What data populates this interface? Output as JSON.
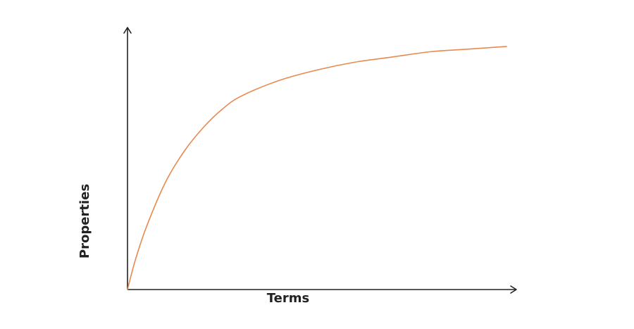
{
  "chart_data": {
    "type": "line",
    "title": "",
    "xlabel": "Terms",
    "ylabel": "Properties",
    "xlim": [
      0,
      1
    ],
    "ylim": [
      0,
      1
    ],
    "grid": false,
    "ticks": false,
    "series": [
      {
        "color": "#e8894f",
        "x": [
          0,
          0.02,
          0.05,
          0.1,
          0.15,
          0.2,
          0.25,
          0.3,
          0.4,
          0.5,
          0.6,
          0.7,
          0.8,
          0.9,
          1.0
        ],
        "y": [
          0,
          0.11,
          0.24,
          0.41,
          0.53,
          0.62,
          0.69,
          0.74,
          0.8,
          0.84,
          0.87,
          0.89,
          0.91,
          0.92,
          0.93
        ]
      }
    ]
  }
}
